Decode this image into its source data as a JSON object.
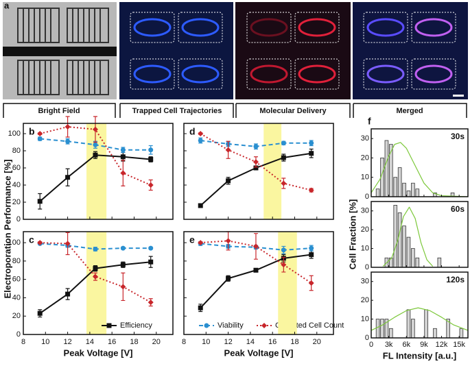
{
  "panel_a": {
    "label": "a",
    "captions": [
      "Bright Field",
      "Trapped Cell Trajectories",
      "Molecular Delivery",
      "Merged"
    ]
  },
  "chart_data": [
    {
      "type": "line",
      "panel": "b",
      "ylabel": "Electroporation Performance [%]",
      "x": [
        9.5,
        12,
        14.5,
        17,
        19.5
      ],
      "xlim": [
        8,
        21.5
      ],
      "ylim": [
        0,
        112
      ],
      "xticks": [
        8,
        10,
        12,
        14,
        16,
        18,
        20
      ],
      "yticks": [
        0,
        20,
        40,
        60,
        80,
        100
      ],
      "x_tick_labels": false,
      "y_tick_labels": true,
      "highlight": [
        13.7,
        15.5
      ],
      "series": [
        {
          "color": "#111111",
          "style": "solid",
          "marker": "square",
          "values": [
            21,
            49,
            75,
            73,
            70
          ],
          "errors": [
            9,
            10,
            4,
            5,
            3
          ]
        },
        {
          "color": "#2a8fd0",
          "style": "dashed",
          "marker": "circle",
          "values": [
            94,
            91,
            87,
            81,
            81
          ],
          "errors": [
            2,
            3,
            4,
            3,
            5
          ]
        },
        {
          "color": "#c8262b",
          "style": "dotted",
          "marker": "diamond",
          "values": [
            100,
            108,
            105,
            54,
            40
          ],
          "errors": [
            1,
            12,
            15,
            15,
            6
          ]
        }
      ]
    },
    {
      "type": "line",
      "panel": "c",
      "xlabel": "Peak Voltage [V]",
      "x": [
        9.5,
        12,
        14.5,
        17,
        19.5
      ],
      "xlim": [
        8,
        21.5
      ],
      "ylim": [
        0,
        112
      ],
      "xticks": [
        8,
        10,
        12,
        14,
        16,
        18,
        20
      ],
      "yticks": [
        0,
        20,
        40,
        60,
        80,
        100
      ],
      "x_tick_labels": true,
      "y_tick_labels": true,
      "highlight": [
        13.7,
        15.5
      ],
      "series": [
        {
          "name": "Efficiency",
          "color": "#111111",
          "style": "solid",
          "marker": "square",
          "values": [
            23,
            44,
            72,
            76,
            79
          ],
          "errors": [
            4,
            6,
            3,
            3,
            6
          ]
        },
        {
          "name": "Viability",
          "color": "#2a8fd0",
          "style": "dashed",
          "marker": "circle",
          "values": [
            99,
            97,
            93,
            94,
            94
          ],
          "errors": [
            1,
            2,
            2,
            1,
            1
          ]
        },
        {
          "name": "Collected Cell Count",
          "color": "#c8262b",
          "style": "dotted",
          "marker": "diamond",
          "values": [
            100,
            99,
            63,
            52,
            35
          ],
          "errors": [
            1,
            12,
            4,
            15,
            4
          ]
        }
      ]
    },
    {
      "type": "line",
      "panel": "d",
      "x": [
        9.5,
        12,
        14.5,
        17,
        19.5
      ],
      "xlim": [
        8,
        21.5
      ],
      "ylim": [
        0,
        112
      ],
      "xticks": [
        8,
        10,
        12,
        14,
        16,
        18,
        20
      ],
      "yticks": [
        0,
        20,
        40,
        60,
        80,
        100
      ],
      "x_tick_labels": false,
      "y_tick_labels": false,
      "highlight": [
        15.2,
        16.8
      ],
      "series": [
        {
          "color": "#111111",
          "style": "solid",
          "marker": "square",
          "values": [
            16,
            45,
            60,
            72,
            77
          ],
          "errors": [
            2,
            4,
            2,
            4,
            5
          ]
        },
        {
          "color": "#2a8fd0",
          "style": "dashed",
          "marker": "circle",
          "values": [
            92,
            88,
            85,
            89,
            89
          ],
          "errors": [
            3,
            3,
            3,
            2,
            3
          ]
        },
        {
          "color": "#c8262b",
          "style": "dotted",
          "marker": "diamond",
          "values": [
            100,
            81,
            67,
            42,
            34
          ],
          "errors": [
            1,
            10,
            6,
            6,
            2
          ]
        }
      ]
    },
    {
      "type": "line",
      "panel": "e",
      "xlabel": "Peak Voltage [V]",
      "x": [
        9.5,
        12,
        14.5,
        17,
        19.5
      ],
      "xlim": [
        8,
        21.5
      ],
      "ylim": [
        0,
        112
      ],
      "xticks": [
        8,
        10,
        12,
        14,
        16,
        18,
        20
      ],
      "yticks": [
        0,
        20,
        40,
        60,
        80,
        100
      ],
      "x_tick_labels": true,
      "y_tick_labels": false,
      "highlight": [
        16.5,
        18.2
      ],
      "series": [
        {
          "color": "#111111",
          "style": "solid",
          "marker": "square",
          "values": [
            29,
            61,
            70,
            83,
            87
          ],
          "errors": [
            4,
            3,
            1,
            4,
            4
          ]
        },
        {
          "color": "#2a8fd0",
          "style": "dashed",
          "marker": "circle",
          "values": [
            99,
            96,
            95,
            92,
            94
          ],
          "errors": [
            2,
            2,
            2,
            4,
            3
          ]
        },
        {
          "color": "#c8262b",
          "style": "dotted",
          "marker": "diamond",
          "values": [
            100,
            102,
            96,
            76,
            56
          ],
          "errors": [
            1,
            10,
            14,
            8,
            8
          ]
        }
      ]
    },
    {
      "type": "histogram",
      "panel": "f",
      "label": "30s",
      "color": "#d4d4d4",
      "fit_color": "#7cc83a",
      "bins": [
        0,
        750,
        1500,
        2250,
        3000,
        3750,
        4500,
        5250,
        6000,
        6750,
        7500,
        8250,
        9000,
        9750,
        10500,
        11250,
        12000,
        12750,
        13500,
        14250,
        15000,
        15750,
        16500
      ],
      "counts": [
        0,
        4,
        20,
        29,
        27,
        10,
        15,
        7,
        3,
        7,
        4,
        0,
        0,
        0,
        2,
        0,
        0,
        0,
        2,
        0,
        0,
        0
      ],
      "fit": {
        "x": [
          0,
          1500,
          3000,
          4000,
          5000,
          6000,
          7500,
          9000,
          10500,
          12000,
          16500
        ],
        "values": [
          2,
          9,
          21,
          27,
          28,
          25,
          16,
          7,
          2,
          0.5,
          0
        ]
      },
      "xlim": [
        0,
        16500
      ],
      "ylim": [
        0,
        35
      ],
      "yticks": [
        0,
        10,
        20,
        30
      ],
      "xticks": [
        0,
        {
          "value": 3000,
          "label": "3k"
        },
        {
          "value": 6000,
          "label": "6k"
        },
        {
          "value": 9000,
          "label": "9k"
        },
        {
          "value": 12000,
          "label": "12k"
        },
        {
          "value": 15000,
          "label": "15k"
        }
      ],
      "x_tick_labels": false
    },
    {
      "type": "histogram",
      "label": "60s",
      "ylabel": "Cell Fraction [%]",
      "color": "#d4d4d4",
      "fit_color": "#7cc83a",
      "bins": [
        0,
        750,
        1500,
        2250,
        3000,
        3750,
        4500,
        5250,
        6000,
        6750,
        7500,
        8250,
        9000,
        9750,
        10500,
        11250,
        12000,
        12750,
        13500,
        14250,
        15000,
        15750,
        16500
      ],
      "counts": [
        0,
        0,
        0,
        5,
        5,
        33,
        29,
        22,
        16,
        10,
        5,
        0,
        0,
        0,
        0,
        5,
        0,
        0,
        0,
        0,
        0,
        0
      ],
      "fit": {
        "x": [
          2000,
          3500,
          4500,
          5500,
          6500,
          7500,
          8500,
          9500,
          10500
        ],
        "values": [
          0.5,
          5,
          14,
          27,
          32,
          26,
          13,
          4,
          0.5
        ]
      },
      "xlim": [
        0,
        16500
      ],
      "ylim": [
        0,
        35
      ],
      "yticks": [
        0,
        10,
        20,
        30
      ],
      "xticks": [
        0,
        {
          "value": 3000,
          "label": "3k"
        },
        {
          "value": 6000,
          "label": "6k"
        },
        {
          "value": 9000,
          "label": "9k"
        },
        {
          "value": 12000,
          "label": "12k"
        },
        {
          "value": 15000,
          "label": "15k"
        }
      ],
      "x_tick_labels": false
    },
    {
      "type": "histogram",
      "label": "120s",
      "xlabel": "FL Intensity [a.u.]",
      "color": "#d4d4d4",
      "fit_color": "#7cc83a",
      "bins": [
        0,
        750,
        1500,
        2250,
        3000,
        3750,
        4500,
        5250,
        6000,
        6750,
        7500,
        8250,
        9000,
        9750,
        10500,
        11250,
        12000,
        12750,
        13500,
        14250,
        15000,
        15750,
        16500
      ],
      "counts": [
        0,
        10,
        10,
        10,
        5,
        0,
        0,
        0,
        15,
        10,
        0,
        0,
        15,
        0,
        5,
        0,
        0,
        10,
        0,
        0,
        5,
        0
      ],
      "fit": {
        "x": [
          0,
          2000,
          4000,
          6000,
          8000,
          10000,
          12000,
          14000,
          16500
        ],
        "values": [
          4,
          7,
          11,
          14.5,
          16,
          14.5,
          11,
          7,
          4
        ]
      },
      "xlim": [
        0,
        16500
      ],
      "ylim": [
        0,
        35
      ],
      "yticks": [
        0,
        10,
        20,
        30
      ],
      "xticks": [
        0,
        {
          "value": 3000,
          "label": "3k"
        },
        {
          "value": 6000,
          "label": "6k"
        },
        {
          "value": 9000,
          "label": "9k"
        },
        {
          "value": 12000,
          "label": "12k"
        },
        {
          "value": 15000,
          "label": "15k"
        }
      ],
      "x_tick_labels": true
    }
  ]
}
